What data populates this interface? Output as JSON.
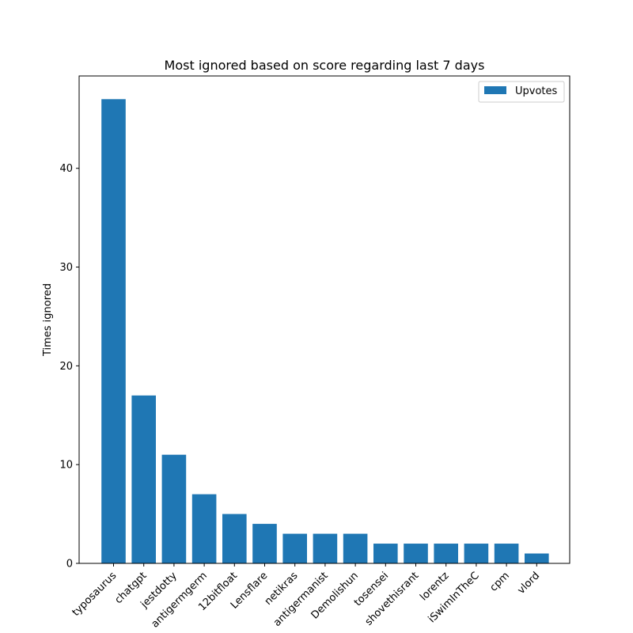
{
  "chart_data": {
    "type": "bar",
    "title": "Most ignored based on score regarding last 7 days",
    "xlabel": "",
    "ylabel": "Times ignored",
    "categories": [
      "typosaurus",
      "chatgpt",
      "jestdotty",
      "antigermgerm",
      "12bitfloat",
      "Lensflare",
      "netikras",
      "antigermanist",
      "Demolishun",
      "tosensei",
      "shovethisrant",
      "lorentz",
      "iSwimInTheC",
      "cpm",
      "vlord"
    ],
    "series": [
      {
        "name": "Upvotes",
        "color": "#1f77b4",
        "values": [
          47,
          17,
          11,
          7,
          5,
          4,
          3,
          3,
          3,
          2,
          2,
          2,
          2,
          2,
          1
        ]
      }
    ],
    "ylim": [
      0,
      49.35
    ],
    "yticks": [
      0,
      10,
      20,
      30,
      40
    ],
    "legend": "top-right",
    "grid": false
  }
}
